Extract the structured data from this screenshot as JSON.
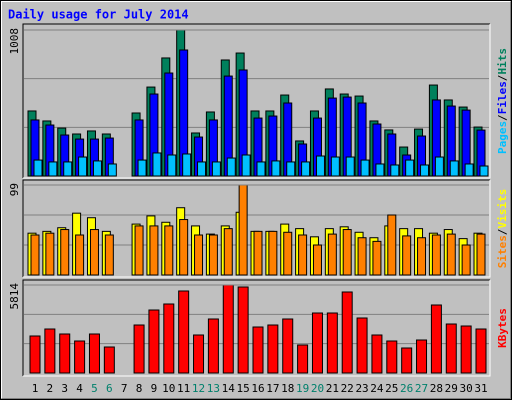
{
  "chart_data": [
    {
      "type": "bar",
      "title": "Daily usage for July 2014",
      "categories": [
        "1",
        "2",
        "3",
        "4",
        "5",
        "6",
        "7",
        "8",
        "9",
        "10",
        "11",
        "12",
        "13",
        "14",
        "15",
        "16",
        "17",
        "18",
        "19",
        "20",
        "21",
        "22",
        "23",
        "24",
        "25",
        "26",
        "27",
        "28",
        "29",
        "30",
        "31"
      ],
      "category_colors": [
        "#000000",
        "#000000",
        "#000000",
        "#000000",
        "#00806c",
        "#00806c",
        "#000000",
        "#000000",
        "#000000",
        "#000000",
        "#000000",
        "#00806c",
        "#00806c",
        "#000000",
        "#000000",
        "#000000",
        "#000000",
        "#000000",
        "#00806c",
        "#00806c",
        "#000000",
        "#000000",
        "#000000",
        "#000000",
        "#000000",
        "#00806c",
        "#00806c",
        "#000000",
        "#000000",
        "#000000",
        "#000000"
      ],
      "ylim": [
        0,
        1008
      ],
      "yticks": [
        1008
      ],
      "legend_separator": "/",
      "series": [
        {
          "name": "Pages",
          "color": "#00c0ff",
          "values": [
            110,
            97,
            97,
            131,
            104,
            83,
            0,
            110,
            159,
            145,
            152,
            97,
            97,
            124,
            145,
            97,
            104,
            97,
            97,
            138,
            131,
            131,
            110,
            83,
            76,
            110,
            76,
            131,
            104,
            83,
            69
          ]
        },
        {
          "name": "Files",
          "color": "#0000ff",
          "values": [
            387,
            352,
            283,
            255,
            255,
            262,
            0,
            387,
            566,
            711,
            870,
            269,
            387,
            690,
            732,
            400,
            414,
            504,
            221,
            400,
            538,
            545,
            504,
            359,
            290,
            145,
            276,
            525,
            483,
            455,
            317
          ]
        },
        {
          "name": "Hits",
          "color": "#00805c",
          "values": [
            449,
            380,
            331,
            290,
            311,
            290,
            0,
            435,
            614,
            815,
            1008,
            297,
            442,
            801,
            849,
            449,
            449,
            559,
            242,
            449,
            601,
            566,
            552,
            380,
            318,
            200,
            324,
            628,
            525,
            476,
            338
          ]
        }
      ]
    },
    {
      "type": "bar",
      "ylim": [
        0,
        99
      ],
      "yticks": [
        99
      ],
      "legend_separator": "/",
      "series": [
        {
          "name": "Sites",
          "color": "#ff8000",
          "values": [
            44,
            46,
            50,
            44,
            50,
            44,
            0,
            54,
            54,
            54,
            61,
            44,
            44,
            51,
            99,
            48,
            48,
            47,
            44,
            33,
            45,
            50,
            41,
            37,
            66,
            43,
            41,
            44,
            45,
            33,
            45
          ]
        },
        {
          "name": "Visits",
          "color": "#ffff00",
          "values": [
            46,
            48,
            52,
            68,
            63,
            48,
            0,
            56,
            65,
            58,
            74,
            54,
            45,
            54,
            69,
            48,
            48,
            56,
            51,
            42,
            51,
            53,
            47,
            41,
            54,
            51,
            51,
            46,
            50,
            40,
            46
          ]
        }
      ]
    },
    {
      "type": "bar",
      "ylim": [
        0,
        5814
      ],
      "yticks": [
        5814
      ],
      "legend_separator": "/",
      "series": [
        {
          "name": "KBytes",
          "color": "#ff0000",
          "values": [
            2445,
            2907,
            2577,
            2114,
            2577,
            1718,
            0,
            3171,
            4162,
            4559,
            5418,
            2511,
            3568,
            5814,
            5682,
            3039,
            3171,
            3568,
            1850,
            3964,
            3964,
            5352,
            3634,
            2511,
            2114,
            1652,
            2180,
            4493,
            3237,
            3105,
            2907
          ]
        }
      ]
    }
  ]
}
